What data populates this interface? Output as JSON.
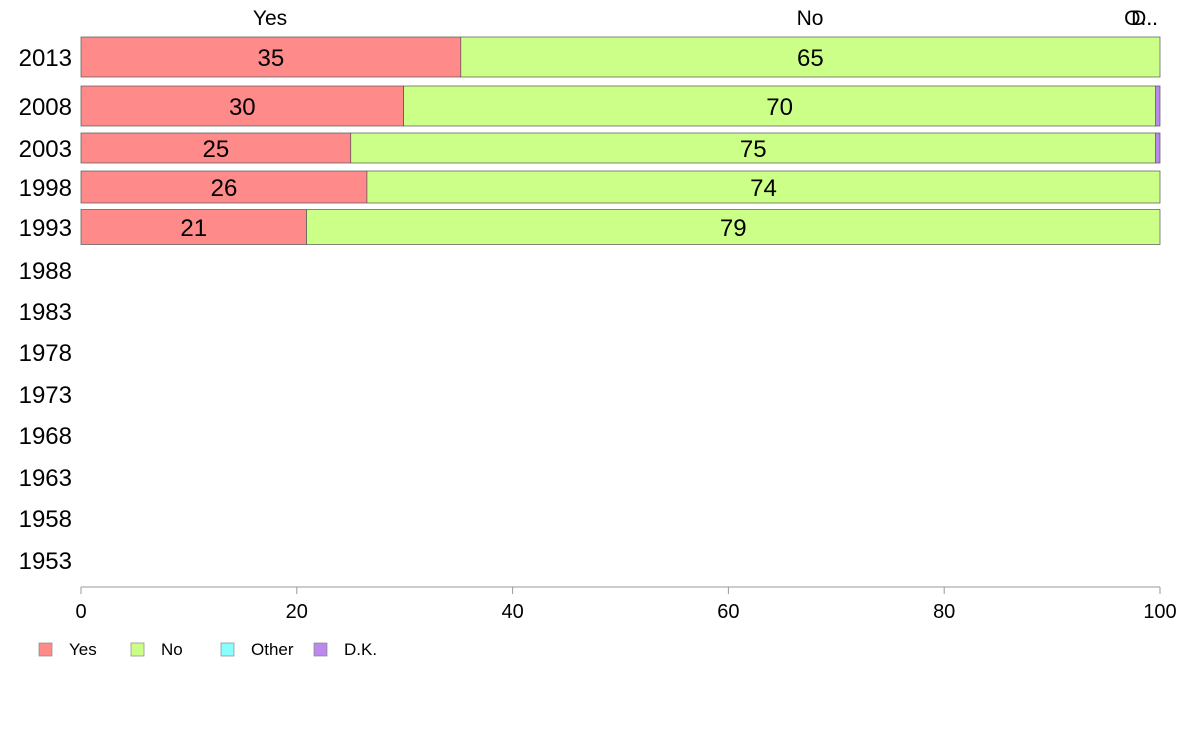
{
  "chart_data": {
    "type": "bar",
    "orientation": "horizontal",
    "stacked": true,
    "categories": [
      "2013",
      "2008",
      "2003",
      "1998",
      "1993",
      "1988",
      "1983",
      "1978",
      "1973",
      "1968",
      "1963",
      "1958",
      "1953"
    ],
    "series": [
      {
        "name": "Yes",
        "color": "#ff8a8a",
        "values": [
          35.2,
          29.9,
          25.0,
          26.5,
          20.9,
          null,
          null,
          null,
          null,
          null,
          null,
          null,
          null
        ],
        "labels": [
          "35",
          "30",
          "25",
          "26",
          "21",
          "",
          "",
          "",
          "",
          "",
          "",
          "",
          ""
        ]
      },
      {
        "name": "No",
        "color": "#ccff88",
        "values": [
          64.8,
          69.7,
          74.6,
          73.5,
          79.1,
          null,
          null,
          null,
          null,
          null,
          null,
          null,
          null
        ],
        "labels": [
          "65",
          "70",
          "75",
          "74",
          "79",
          "",
          "",
          "",
          "",
          "",
          "",
          "",
          ""
        ]
      },
      {
        "name": "Other",
        "color": "#88ffff",
        "values": [
          0,
          0,
          0,
          0,
          0,
          null,
          null,
          null,
          null,
          null,
          null,
          null,
          null
        ],
        "labels": [
          "",
          "",
          "",
          "",
          "",
          "",
          "",
          "",
          "",
          "",
          "",
          "",
          ""
        ]
      },
      {
        "name": "D.K.",
        "color": "#bb88ee",
        "values": [
          0,
          0.4,
          0.4,
          0,
          0,
          null,
          null,
          null,
          null,
          null,
          null,
          null,
          null
        ],
        "labels": [
          "",
          "",
          "",
          "",
          "",
          "",
          "",
          "",
          "",
          "",
          "",
          "",
          ""
        ]
      }
    ],
    "column_labels": [
      "Yes",
      "No",
      "D..",
      "O..."
    ],
    "xlim": [
      0,
      100
    ],
    "xticks": [
      0,
      20,
      40,
      60,
      80,
      100
    ],
    "legend": {
      "position": "bottom-left",
      "entries": [
        "Yes",
        "No",
        "Other",
        "D.K."
      ]
    },
    "grid": false,
    "title": "",
    "xlabel": "",
    "ylabel": ""
  }
}
